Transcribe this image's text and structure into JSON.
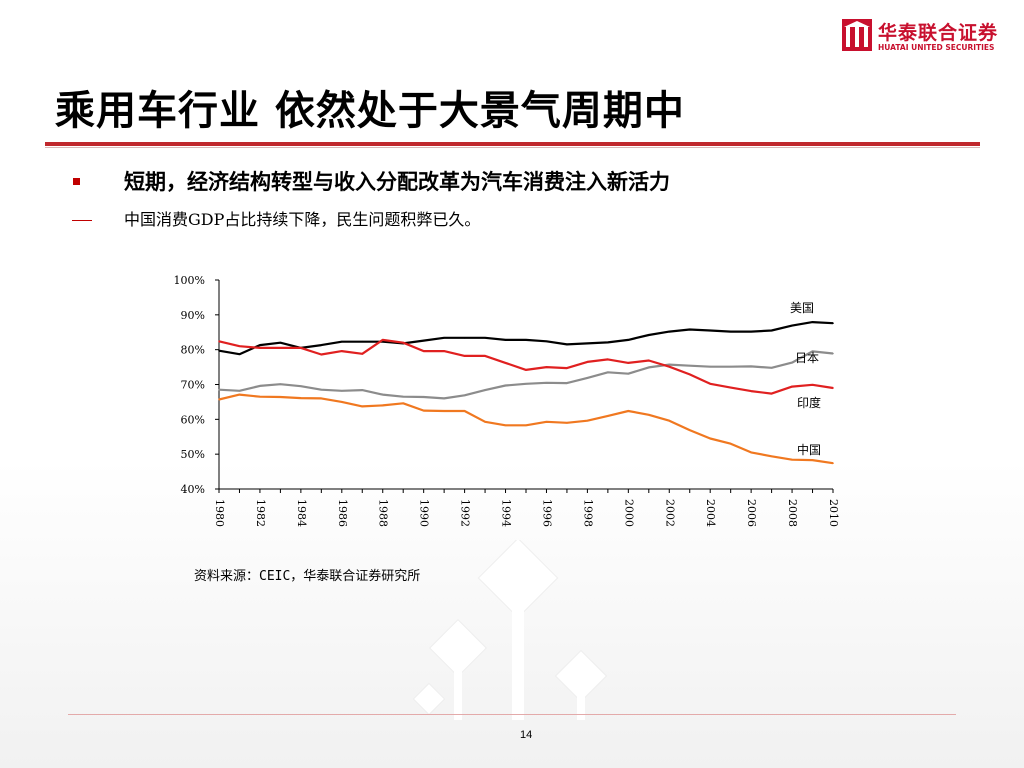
{
  "brand": {
    "name_cn": "华泰联合证券",
    "name_en": "HUATAI UNITED SECURITIES"
  },
  "slide": {
    "title": "乘用车行业  依然处于大景气周期中",
    "bullet1": "短期，经济结构转型与收入分配改革为汽车消费注入新活力",
    "bullet2": "中国消费GDP占比持续下降，民生问题积弊已久。",
    "source": "资料来源：CEIC，华泰联合证券研究所",
    "page_number": "14"
  },
  "colors": {
    "brand_red": "#c8102e",
    "rule_red": "#c0282d",
    "us": "#000000",
    "japan": "#8c8c8c",
    "india": "#e02020",
    "china": "#f07820"
  },
  "chart_data": {
    "type": "line",
    "title": "",
    "xlabel": "",
    "ylabel": "",
    "x": [
      1980,
      1981,
      1982,
      1983,
      1984,
      1985,
      1986,
      1987,
      1988,
      1989,
      1990,
      1991,
      1992,
      1993,
      1994,
      1995,
      1996,
      1997,
      1998,
      1999,
      2000,
      2001,
      2002,
      2003,
      2004,
      2005,
      2006,
      2007,
      2008,
      2009,
      2010
    ],
    "xticks": [
      "1980",
      "1982",
      "1984",
      "1986",
      "1988",
      "1990",
      "1992",
      "1994",
      "1996",
      "1998",
      "2000",
      "2002",
      "2004",
      "2006",
      "2008",
      "2010"
    ],
    "yticks": [
      "40%",
      "50%",
      "60%",
      "70%",
      "80%",
      "90%",
      "100%"
    ],
    "ylim": [
      40,
      100
    ],
    "xlim": [
      1980,
      2010
    ],
    "grid": false,
    "legend": "inline labels at right end",
    "series": [
      {
        "name": "美国",
        "color": "#000000",
        "values": [
          79.7,
          78.7,
          81.3,
          82.0,
          80.5,
          81.3,
          82.3,
          82.3,
          82.3,
          81.8,
          82.6,
          83.4,
          83.4,
          83.4,
          82.8,
          82.8,
          82.4,
          81.5,
          81.8,
          82.1,
          82.8,
          84.2,
          85.2,
          85.8,
          85.5,
          85.2,
          85.2,
          85.5,
          86.9,
          87.9,
          87.6
        ]
      },
      {
        "name": "日本",
        "color": "#8c8c8c",
        "values": [
          68.5,
          68.2,
          69.6,
          70.1,
          69.5,
          68.5,
          68.2,
          68.4,
          67.1,
          66.5,
          66.4,
          66.0,
          66.9,
          68.4,
          69.7,
          70.2,
          70.5,
          70.4,
          71.9,
          73.5,
          73.1,
          74.9,
          75.7,
          75.4,
          75.1,
          75.1,
          75.2,
          74.8,
          76.3,
          79.5,
          78.9
        ]
      },
      {
        "name": "印度",
        "color": "#e02020",
        "values": [
          82.4,
          81.0,
          80.5,
          80.5,
          80.5,
          78.6,
          79.6,
          78.8,
          82.8,
          82.0,
          79.6,
          79.6,
          78.2,
          78.2,
          76.2,
          74.2,
          75.0,
          74.7,
          76.5,
          77.2,
          76.2,
          76.9,
          75.1,
          72.9,
          70.2,
          69.1,
          68.1,
          67.4,
          69.4,
          69.9,
          69.0
        ]
      },
      {
        "name": "中国",
        "color": "#f07820",
        "values": [
          65.7,
          67.1,
          66.5,
          66.4,
          66.1,
          66.0,
          65.0,
          63.7,
          64.0,
          64.6,
          62.5,
          62.4,
          62.4,
          59.3,
          58.3,
          58.3,
          59.3,
          59.0,
          59.6,
          61.0,
          62.4,
          61.3,
          59.6,
          56.9,
          54.5,
          53.0,
          50.5,
          49.4,
          48.4,
          48.3,
          47.4
        ]
      }
    ]
  }
}
